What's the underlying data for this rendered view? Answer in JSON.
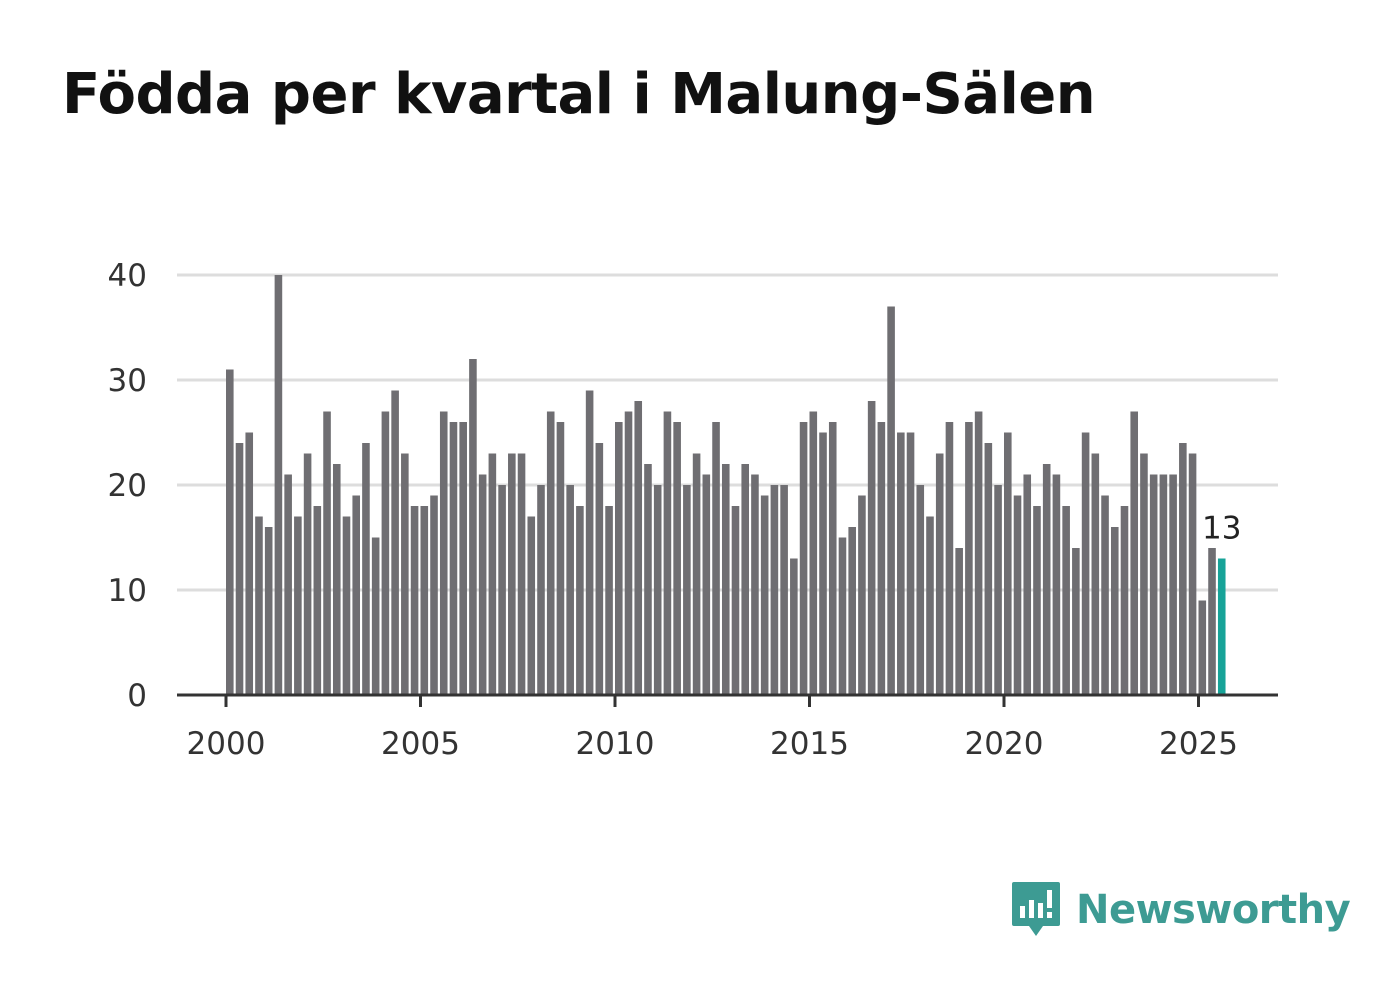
{
  "title": "Födda per kvartal i Malung-Sälen",
  "brand": {
    "name": "Newsworthy",
    "icon": "newsworthy-logo-icon",
    "color": "#3d9b93"
  },
  "chart_data": {
    "type": "bar",
    "title": "Födda per kvartal i Malung-Sälen",
    "xlabel": "",
    "ylabel": "",
    "ylim": [
      0,
      40
    ],
    "yticks": [
      0,
      10,
      20,
      30,
      40
    ],
    "xlim": [
      2000,
      2027
    ],
    "xticks": [
      2000,
      2005,
      2010,
      2015,
      2020,
      2025
    ],
    "grid": true,
    "bar_color": "#6f6e72",
    "highlight_color": "#17a398",
    "start_year": 2000,
    "periods_per_year": 4,
    "values": [
      31,
      24,
      25,
      17,
      16,
      40,
      21,
      17,
      23,
      18,
      27,
      22,
      17,
      19,
      24,
      15,
      27,
      29,
      23,
      18,
      18,
      19,
      27,
      26,
      26,
      32,
      21,
      23,
      20,
      23,
      23,
      17,
      20,
      27,
      26,
      20,
      18,
      29,
      24,
      18,
      26,
      27,
      28,
      22,
      20,
      27,
      26,
      20,
      23,
      21,
      26,
      22,
      18,
      22,
      21,
      19,
      20,
      20,
      13,
      26,
      27,
      25,
      26,
      15,
      16,
      19,
      28,
      26,
      37,
      25,
      25,
      20,
      17,
      23,
      26,
      14,
      26,
      27,
      24,
      20,
      25,
      19,
      21,
      18,
      22,
      21,
      18,
      14,
      25,
      23,
      19,
      16,
      18,
      27,
      23,
      21,
      21,
      21,
      24,
      23,
      9,
      14,
      13
    ],
    "highlight_index": 102,
    "annotations": [
      {
        "index": 102,
        "text": "13"
      }
    ]
  }
}
